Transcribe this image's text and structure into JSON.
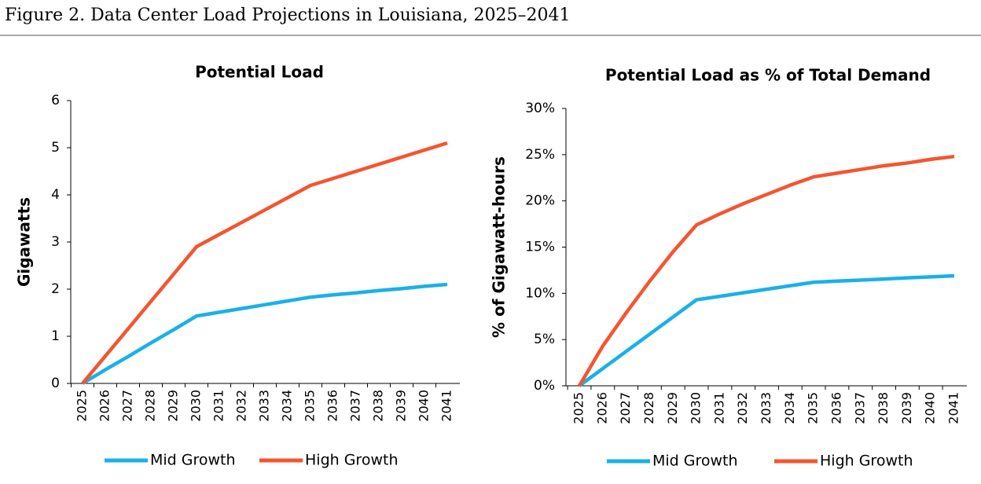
{
  "figure_title": "Figure 2. Data Center Load Projections in Louisiana, 2025–2041",
  "chart_data": [
    {
      "type": "line",
      "title": "Potential Load",
      "y_label": "Gigawatts",
      "categories": [
        "2025",
        "2026",
        "2027",
        "2028",
        "2029",
        "2030",
        "2031",
        "2032",
        "2033",
        "2034",
        "2035",
        "2036",
        "2037",
        "2038",
        "2039",
        "2040",
        "2041"
      ],
      "series": [
        {
          "name": "Mid Growth",
          "color": "#1ab0e8",
          "values": [
            0,
            0.29,
            0.57,
            0.86,
            1.14,
            1.43,
            1.51,
            1.59,
            1.67,
            1.75,
            1.83,
            1.88,
            1.92,
            1.97,
            2.01,
            2.06,
            2.1
          ]
        },
        {
          "name": "High Growth",
          "color": "#f4552f",
          "values": [
            0,
            0.58,
            1.16,
            1.74,
            2.32,
            2.9,
            3.16,
            3.42,
            3.68,
            3.94,
            4.2,
            4.35,
            4.5,
            4.65,
            4.8,
            4.95,
            5.1
          ]
        }
      ],
      "ylim": [
        0,
        6
      ],
      "yticks": [
        0,
        1,
        2,
        3,
        4,
        5,
        6
      ],
      "legend": "bottom"
    },
    {
      "type": "line",
      "title": "Potential Load as % of Total Demand",
      "y_label": "% of Gigawatt-hours",
      "categories": [
        "2025",
        "2026",
        "2027",
        "2028",
        "2029",
        "2030",
        "2031",
        "2032",
        "2033",
        "2034",
        "2035",
        "2036",
        "2037",
        "2038",
        "2039",
        "2040",
        "2041"
      ],
      "series": [
        {
          "name": "Mid Growth",
          "color": "#1ab0e8",
          "values": [
            0,
            1.86,
            3.72,
            5.58,
            7.44,
            9.3,
            9.68,
            10.06,
            10.44,
            10.82,
            11.2,
            11.32,
            11.43,
            11.55,
            11.67,
            11.78,
            11.9
          ]
        },
        {
          "name": "High Growth",
          "color": "#f4552f",
          "values": [
            0,
            4.3,
            7.9,
            11.3,
            14.5,
            17.4,
            18.6,
            19.7,
            20.7,
            21.7,
            22.6,
            23.0,
            23.4,
            23.8,
            24.1,
            24.5,
            24.8
          ]
        }
      ],
      "ylim": [
        0,
        30
      ],
      "yticks": [
        {
          "value": 0,
          "label": "0%"
        },
        {
          "value": 5,
          "label": "5%"
        },
        {
          "value": 10,
          "label": "10%"
        },
        {
          "value": 15,
          "label": "15%"
        },
        {
          "value": 20,
          "label": "20%"
        },
        {
          "value": 25,
          "label": "25%"
        },
        {
          "value": 30,
          "label": "30%"
        }
      ],
      "legend": "bottom"
    }
  ]
}
